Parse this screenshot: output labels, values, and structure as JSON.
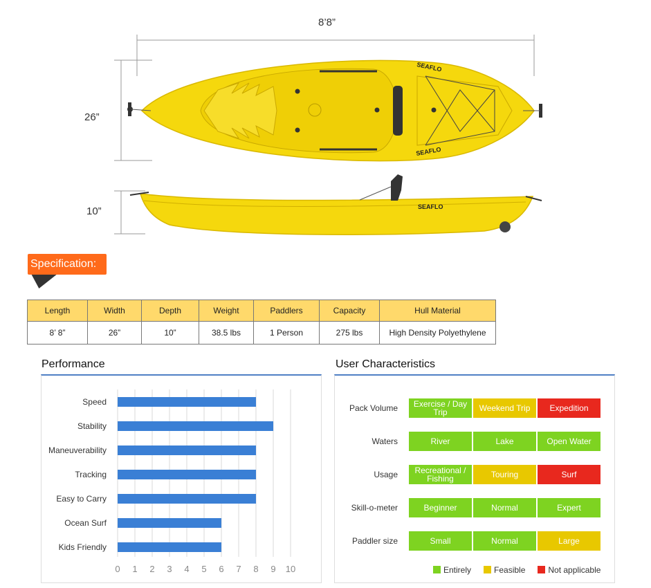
{
  "dimensions": {
    "length": "8’8”",
    "width": "26”",
    "depth": "10”"
  },
  "brand": "SEAFLO",
  "spec": {
    "badge": "Specification:",
    "headers": [
      "Length",
      "Width",
      "Depth",
      "Weight",
      "Paddlers",
      "Capacity",
      "Hull Material"
    ],
    "values": [
      "8’ 8”",
      "26”",
      "10”",
      "38.5 lbs",
      "1 Person",
      "275 lbs",
      "High Density Polyethylene"
    ]
  },
  "performance": {
    "title": "Performance",
    "chart_data": {
      "type": "bar",
      "orientation": "horizontal",
      "categories": [
        "Speed",
        "Stability",
        "Maneuverability",
        "Tracking",
        "Easy to Carry",
        "Ocean Surf",
        "Kids Friendly"
      ],
      "values": [
        8,
        9,
        8,
        8,
        8,
        6,
        6
      ],
      "xlim": [
        0,
        10
      ],
      "xticks": [
        "0",
        "1",
        "2",
        "3",
        "4",
        "5",
        "6",
        "7",
        "8",
        "9",
        "10"
      ],
      "grid": true,
      "bar_color": "#3a7fd5"
    }
  },
  "user_characteristics": {
    "title": "User Characteristics",
    "rows": [
      {
        "label": "Pack Volume",
        "cells": [
          {
            "text": "Exercise / Day Trip",
            "status": "entirely"
          },
          {
            "text": "Weekend Trip",
            "status": "feasible"
          },
          {
            "text": "Expedition",
            "status": "na"
          }
        ]
      },
      {
        "label": "Waters",
        "cells": [
          {
            "text": "River",
            "status": "entirely"
          },
          {
            "text": "Lake",
            "status": "entirely"
          },
          {
            "text": "Open Water",
            "status": "entirely"
          }
        ]
      },
      {
        "label": "Usage",
        "cells": [
          {
            "text": "Recreational / Fishing",
            "status": "entirely"
          },
          {
            "text": "Touring",
            "status": "feasible"
          },
          {
            "text": "Surf",
            "status": "na"
          }
        ]
      },
      {
        "label": "Skill-o-meter",
        "cells": [
          {
            "text": "Beginner",
            "status": "entirely"
          },
          {
            "text": "Normal",
            "status": "entirely"
          },
          {
            "text": "Expert",
            "status": "entirely"
          }
        ]
      },
      {
        "label": "Paddler size",
        "cells": [
          {
            "text": "Small",
            "status": "entirely"
          },
          {
            "text": "Normal",
            "status": "entirely"
          },
          {
            "text": "Large",
            "status": "feasible"
          }
        ]
      }
    ],
    "legend": {
      "entirely": "Entirely",
      "feasible": "Feasible",
      "na": "Not applicable"
    },
    "colors": {
      "entirely": "#7ed321",
      "feasible": "#e8c800",
      "na": "#e8281e"
    }
  }
}
